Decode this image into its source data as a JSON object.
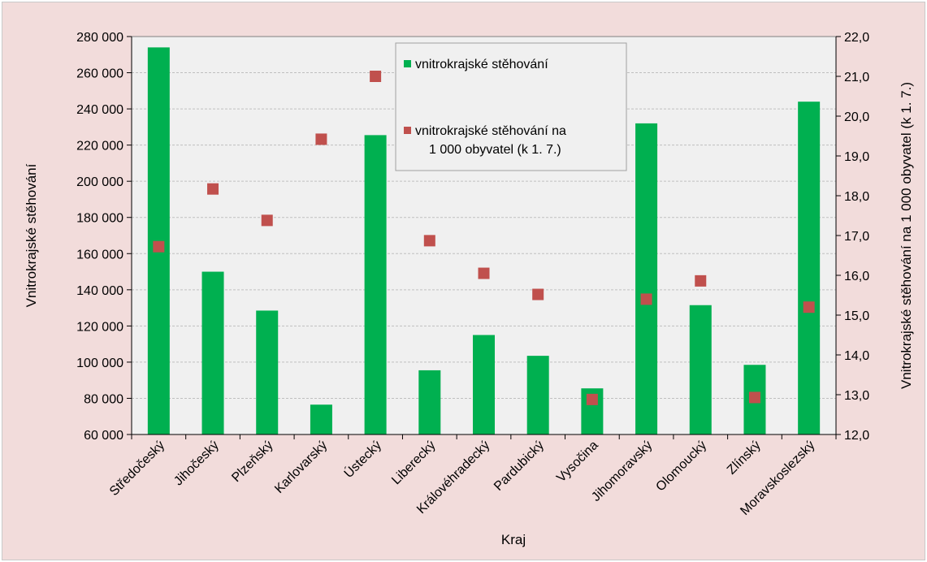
{
  "chart_data": {
    "type": "bar",
    "categories": [
      "Středočeský",
      "Jihočeský",
      "Plzeňský",
      "Karlovarský",
      "Ústecký",
      "Liberecký",
      "Královéhradecký",
      "Pardubický",
      "Vysočina",
      "Jihomoravský",
      "Olomoucký",
      "Zlínský",
      "Moravskoslezský"
    ],
    "series": [
      {
        "name": "vnitrokrajské stěhování",
        "type": "bar",
        "axis": "left",
        "color": "#00b050",
        "values": [
          274000,
          150000,
          128500,
          76500,
          225500,
          95500,
          115000,
          103500,
          85500,
          232000,
          131500,
          98500,
          244000
        ]
      },
      {
        "name": "vnitrokrajské stěhování na 1 000 obyvatel (k 1. 7.)",
        "legend_lines": [
          "vnitrokrajské stěhování na",
          "1 000 obyvatel (k 1. 7.)"
        ],
        "type": "scatter",
        "axis": "right",
        "color": "#c0504d",
        "values": [
          16.72,
          18.17,
          17.38,
          19.42,
          21.0,
          16.87,
          16.05,
          15.52,
          12.88,
          15.4,
          15.86,
          12.93,
          15.2
        ]
      }
    ],
    "title": "",
    "xlabel": "Kraj",
    "ylabel": "Vnitrokrajské stěhování",
    "y2label": "Vnitrokrajské stěhování na 1 000 obyvatel (k 1. 7.)",
    "ylim": [
      60000,
      280000
    ],
    "y2lim": [
      12.0,
      22.0
    ],
    "yticks": [
      "60 000",
      "80 000",
      "100 000",
      "120 000",
      "140 000",
      "160 000",
      "180 000",
      "200 000",
      "220 000",
      "240 000",
      "260 000",
      "280 000"
    ],
    "y2ticks": [
      "12,0",
      "13,0",
      "14,0",
      "15,0",
      "16,0",
      "17,0",
      "18,0",
      "19,0",
      "20,0",
      "21,0",
      "22,0"
    ],
    "grid": true,
    "legend_position": "top-center-inside",
    "colors": {
      "background": "#f2dcdb",
      "plot_area": "#f0f0f0",
      "grid": "#bfbfbf",
      "bar": "#00b050",
      "marker": "#c0504d"
    }
  }
}
